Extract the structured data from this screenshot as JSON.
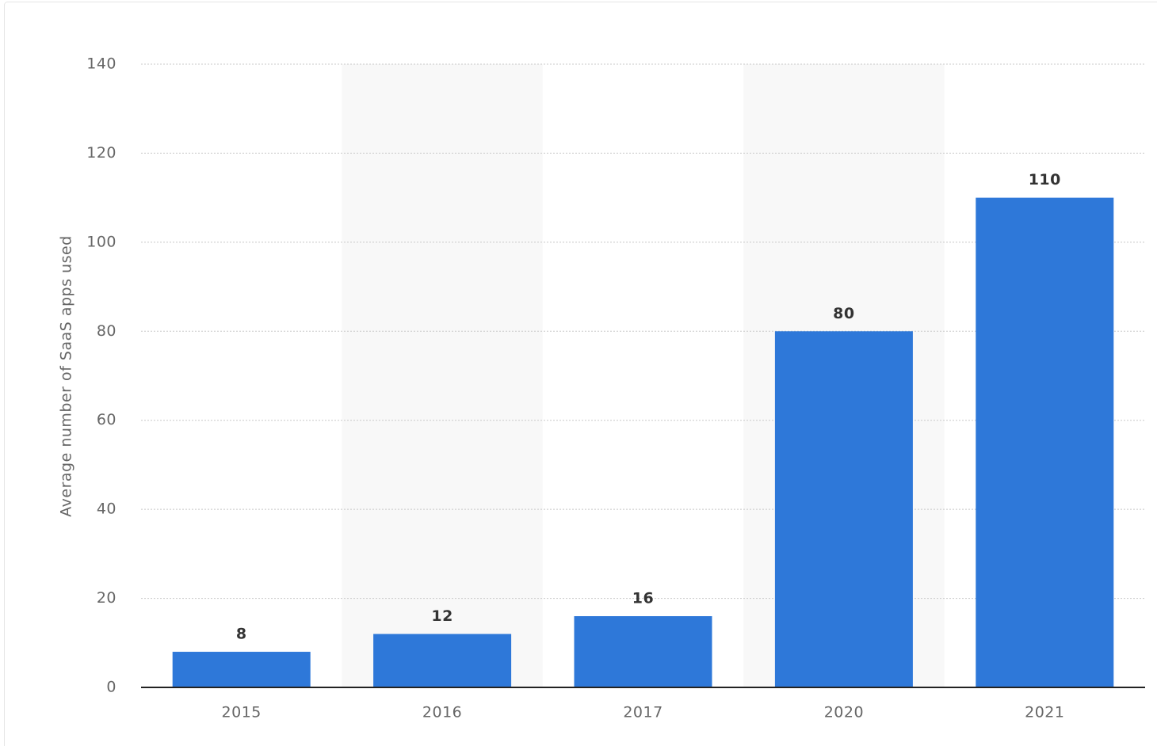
{
  "chart_data": {
    "type": "bar",
    "y_axis_label": "Average number of SaaS apps used",
    "categories": [
      "2015",
      "2016",
      "2017",
      "2020",
      "2021"
    ],
    "values": [
      8,
      12,
      16,
      80,
      110
    ],
    "color": "#2e78d9",
    "ylim": [
      0,
      140
    ],
    "yticks": [
      0,
      20,
      40,
      60,
      80,
      100,
      120,
      140
    ],
    "grid": true
  }
}
